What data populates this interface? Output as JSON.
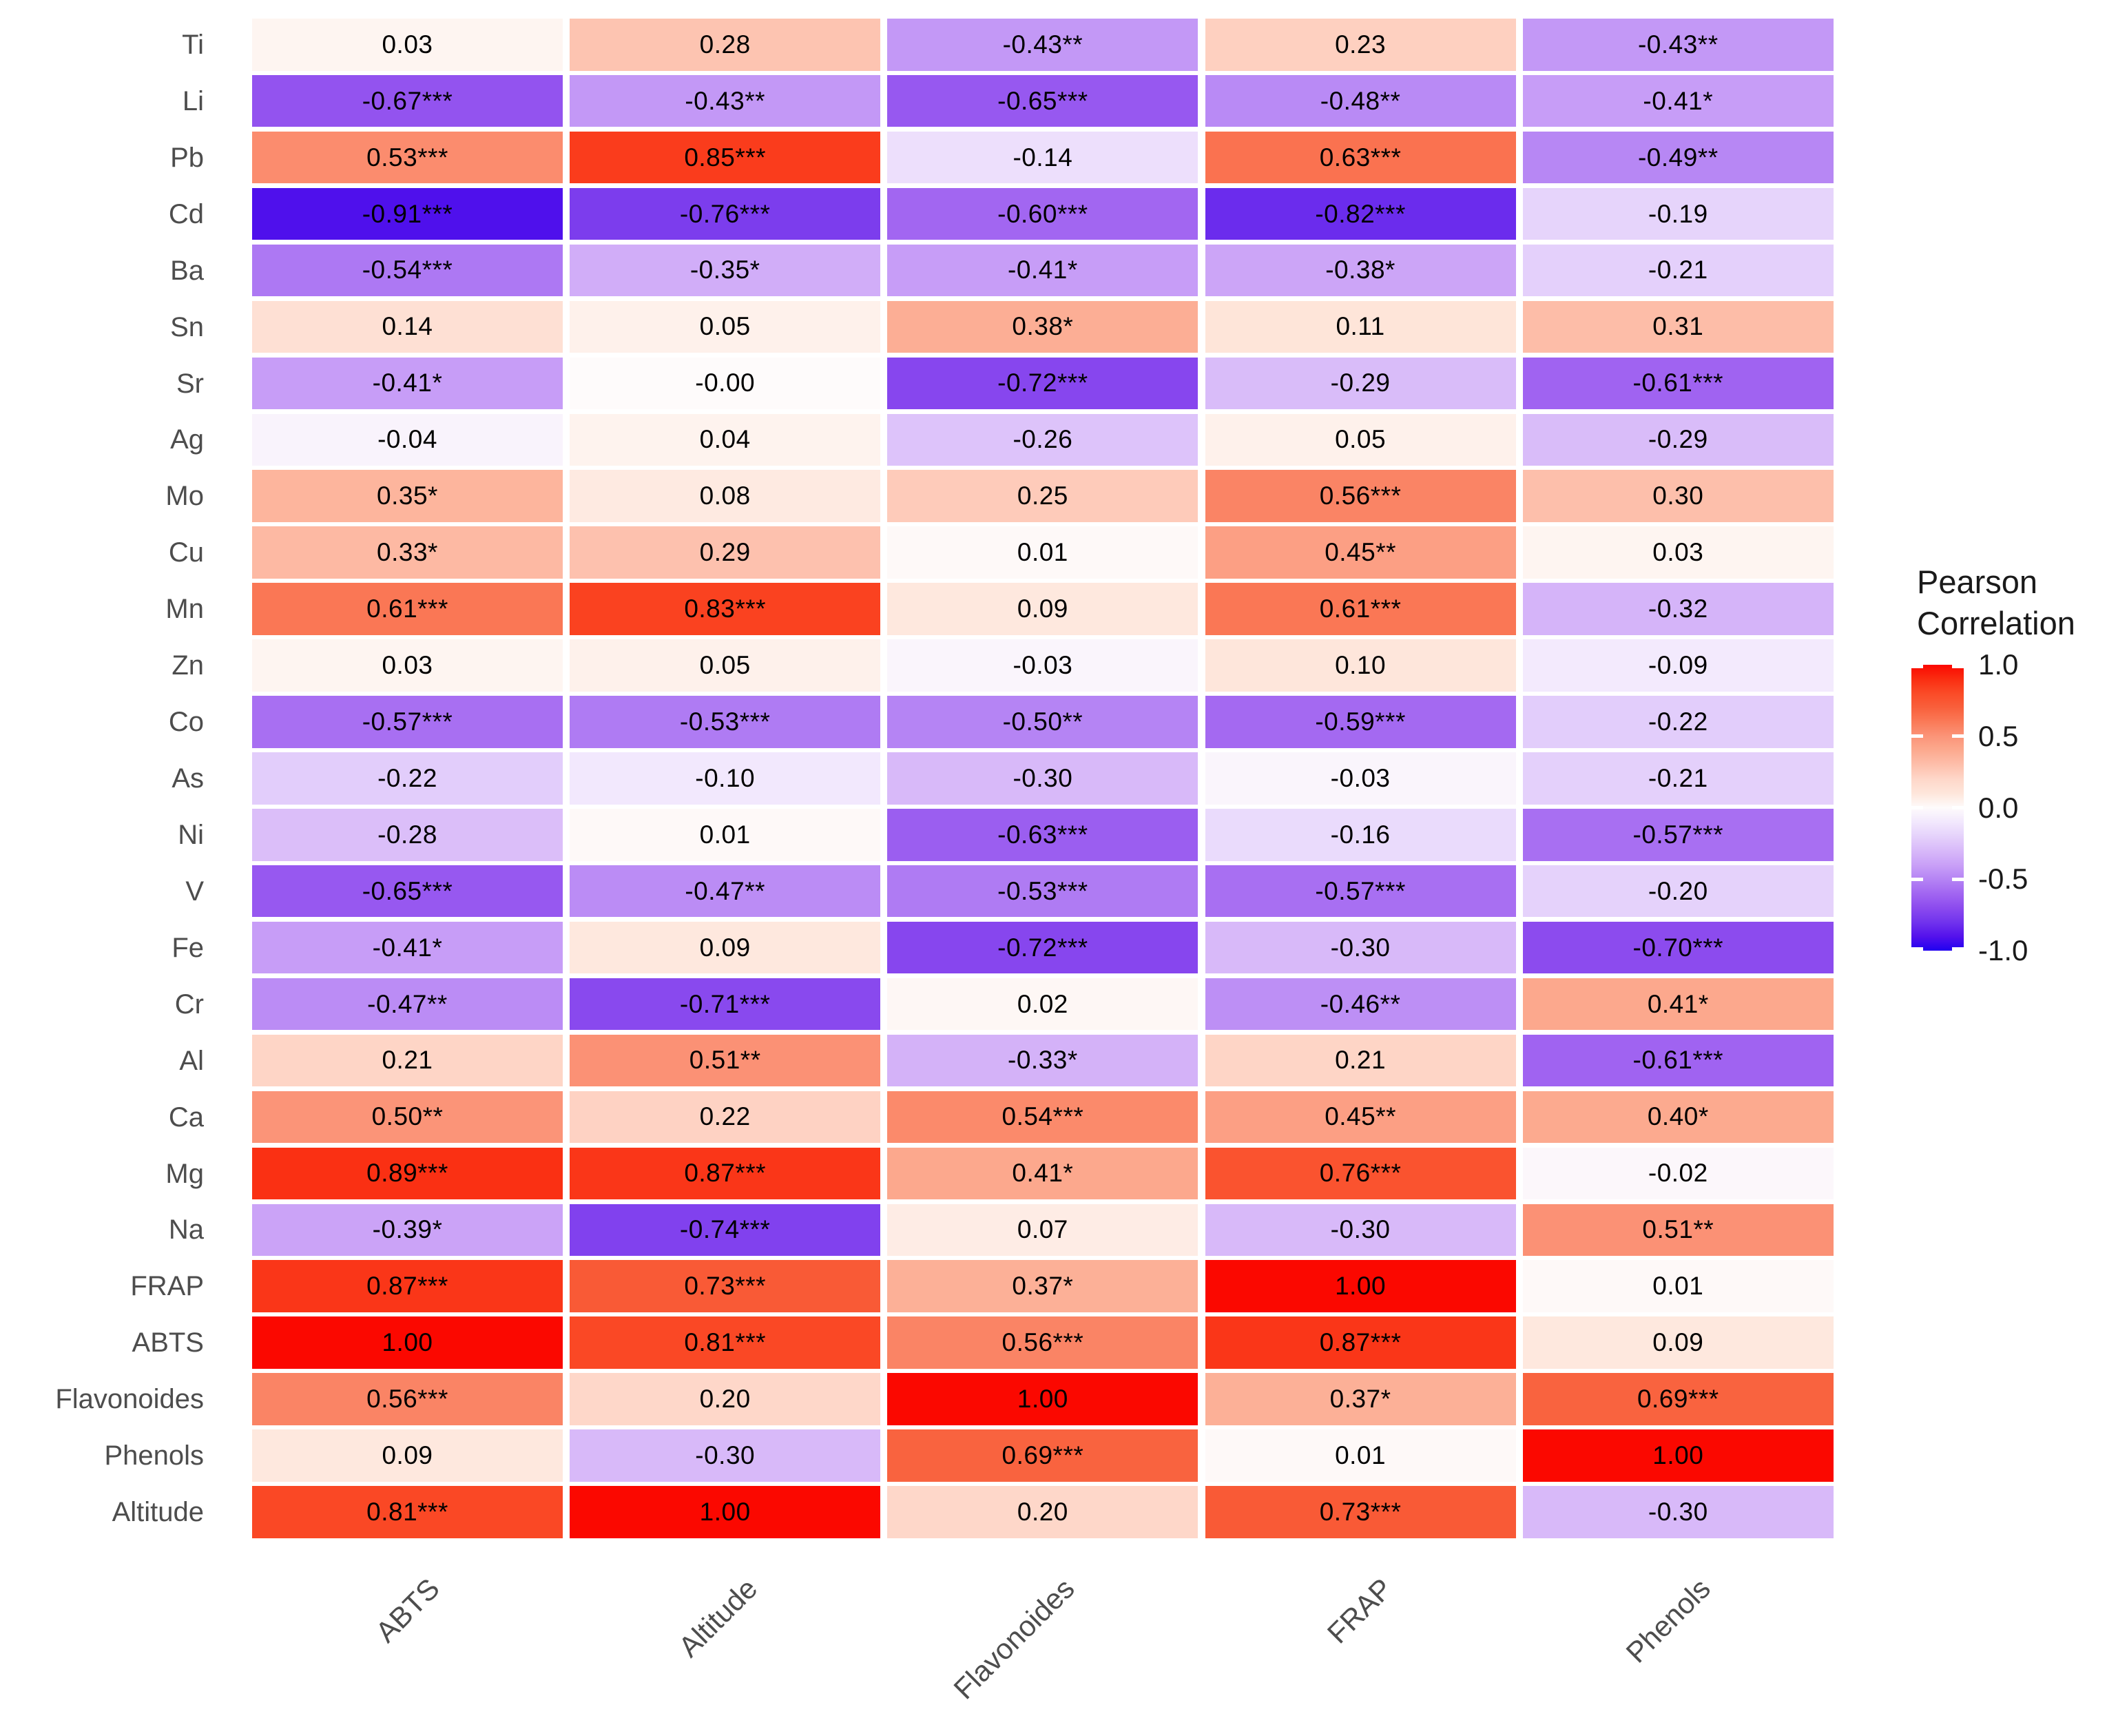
{
  "chart_data": {
    "type": "heatmap",
    "title": "",
    "legend": {
      "title_line1": "Pearson",
      "title_line2": "Correlation",
      "ticks": [
        "1.0",
        "0.5",
        "0.0",
        "-0.5",
        "-1.0"
      ],
      "tick_values": [
        1.0,
        0.5,
        0.0,
        -0.5,
        -1.0
      ]
    },
    "x_categories": [
      "ABTS",
      "Altitude",
      "Flavonoides",
      "FRAP",
      "Phenols"
    ],
    "y_categories": [
      "Ti",
      "Li",
      "Pb",
      "Cd",
      "Ba",
      "Sn",
      "Sr",
      "Ag",
      "Mo",
      "Cu",
      "Mn",
      "Zn",
      "Co",
      "As",
      "Ni",
      "V",
      "Fe",
      "Cr",
      "Al",
      "Ca",
      "Mg",
      "Na",
      "FRAP",
      "ABTS",
      "Flavonoides",
      "Phenols",
      "Altitude"
    ],
    "cell_labels": [
      [
        "0.03",
        "0.28",
        "-0.43**",
        "0.23",
        "-0.43**"
      ],
      [
        "-0.67***",
        "-0.43**",
        "-0.65***",
        "-0.48**",
        "-0.41*"
      ],
      [
        "0.53***",
        "0.85***",
        "-0.14",
        "0.63***",
        "-0.49**"
      ],
      [
        "-0.91***",
        "-0.76***",
        "-0.60***",
        "-0.82***",
        "-0.19"
      ],
      [
        "-0.54***",
        "-0.35*",
        "-0.41*",
        "-0.38*",
        "-0.21"
      ],
      [
        "0.14",
        "0.05",
        "0.38*",
        "0.11",
        "0.31"
      ],
      [
        "-0.41*",
        "-0.00",
        "-0.72***",
        "-0.29",
        "-0.61***"
      ],
      [
        "-0.04",
        "0.04",
        "-0.26",
        "0.05",
        "-0.29"
      ],
      [
        "0.35*",
        "0.08",
        "0.25",
        "0.56***",
        "0.30"
      ],
      [
        "0.33*",
        "0.29",
        "0.01",
        "0.45**",
        "0.03"
      ],
      [
        "0.61***",
        "0.83***",
        "0.09",
        "0.61***",
        "-0.32"
      ],
      [
        "0.03",
        "0.05",
        "-0.03",
        "0.10",
        "-0.09"
      ],
      [
        "-0.57***",
        "-0.53***",
        "-0.50**",
        "-0.59***",
        "-0.22"
      ],
      [
        "-0.22",
        "-0.10",
        "-0.30",
        "-0.03",
        "-0.21"
      ],
      [
        "-0.28",
        "0.01",
        "-0.63***",
        "-0.16",
        "-0.57***"
      ],
      [
        "-0.65***",
        "-0.47**",
        "-0.53***",
        "-0.57***",
        "-0.20"
      ],
      [
        "-0.41*",
        "0.09",
        "-0.72***",
        "-0.30",
        "-0.70***"
      ],
      [
        "-0.47**",
        "-0.71***",
        "0.02",
        "-0.46**",
        "0.41*"
      ],
      [
        "0.21",
        "0.51**",
        "-0.33*",
        "0.21",
        "-0.61***"
      ],
      [
        "0.50**",
        "0.22",
        "0.54***",
        "0.45**",
        "0.40*"
      ],
      [
        "0.89***",
        "0.87***",
        "0.41*",
        "0.76***",
        "-0.02"
      ],
      [
        "-0.39*",
        "-0.74***",
        "0.07",
        "-0.30",
        "0.51**"
      ],
      [
        "0.87***",
        "0.73***",
        "0.37*",
        "1.00",
        "0.01"
      ],
      [
        "1.00",
        "0.81***",
        "0.56***",
        "0.87***",
        "0.09"
      ],
      [
        "0.56***",
        "0.20",
        "1.00",
        "0.37*",
        "0.69***"
      ],
      [
        "0.09",
        "-0.30",
        "0.69***",
        "0.01",
        "1.00"
      ],
      [
        "0.81***",
        "1.00",
        "0.20",
        "0.73***",
        "-0.30"
      ]
    ],
    "value_range": [
      -1.0,
      1.0
    ],
    "grid": false,
    "legend_position": "right",
    "color_stops": [
      {
        "v": -1.0,
        "c": "#2000F0"
      },
      {
        "v": -0.9,
        "c": "#5412EC"
      },
      {
        "v": -0.8,
        "c": "#7133ED"
      },
      {
        "v": -0.7,
        "c": "#8C4BEE"
      },
      {
        "v": -0.6,
        "c": "#A266F1"
      },
      {
        "v": -0.5,
        "c": "#B584F4"
      },
      {
        "v": -0.4,
        "c": "#C9A0F7"
      },
      {
        "v": -0.3,
        "c": "#D8B9F9"
      },
      {
        "v": -0.2,
        "c": "#E5D2FB"
      },
      {
        "v": -0.1,
        "c": "#F2E8FD"
      },
      {
        "v": 0.0,
        "c": "#FEFBFB"
      },
      {
        "v": 0.1,
        "c": "#FEE6DB"
      },
      {
        "v": 0.2,
        "c": "#FED7C9"
      },
      {
        "v": 0.3,
        "c": "#FDBFAB"
      },
      {
        "v": 0.4,
        "c": "#FCAA8F"
      },
      {
        "v": 0.5,
        "c": "#FB9478"
      },
      {
        "v": 0.6,
        "c": "#FA7A58"
      },
      {
        "v": 0.7,
        "c": "#F9603C"
      },
      {
        "v": 0.8,
        "c": "#FA4B27"
      },
      {
        "v": 0.9,
        "c": "#FA2D11"
      },
      {
        "v": 1.0,
        "c": "#FB0800"
      }
    ]
  }
}
